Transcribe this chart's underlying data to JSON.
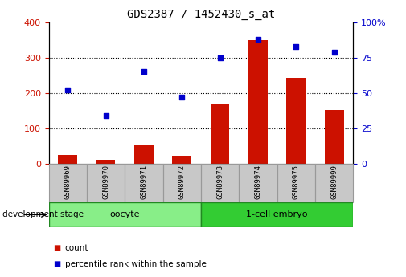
{
  "title": "GDS2387 / 1452430_s_at",
  "samples": [
    "GSM89969",
    "GSM89970",
    "GSM89971",
    "GSM89972",
    "GSM89973",
    "GSM89974",
    "GSM89975",
    "GSM89999"
  ],
  "count_values": [
    25,
    10,
    52,
    22,
    168,
    348,
    243,
    152
  ],
  "percentile_values": [
    52,
    34,
    65,
    47,
    75,
    88,
    83,
    79
  ],
  "groups": [
    {
      "label": "oocyte",
      "indices": [
        0,
        1,
        2,
        3
      ],
      "color": "#88ee88"
    },
    {
      "label": "1-cell embryo",
      "indices": [
        4,
        5,
        6,
        7
      ],
      "color": "#33cc33"
    }
  ],
  "left_ylim": [
    0,
    400
  ],
  "right_ylim": [
    0,
    100
  ],
  "left_yticks": [
    0,
    100,
    200,
    300,
    400
  ],
  "right_yticks": [
    0,
    25,
    50,
    75,
    100
  ],
  "right_yticklabels": [
    "0",
    "25",
    "50",
    "75",
    "100%"
  ],
  "bar_color": "#cc1100",
  "scatter_color": "#0000cc",
  "grid_color": "#000000",
  "title_fontsize": 10,
  "bg_color": "#ffffff",
  "plot_bg": "#ffffff",
  "tick_area_bg": "#c8c8c8",
  "xlabel_text": "development stage",
  "legend_count_label": "count",
  "legend_percentile_label": "percentile rank within the sample"
}
